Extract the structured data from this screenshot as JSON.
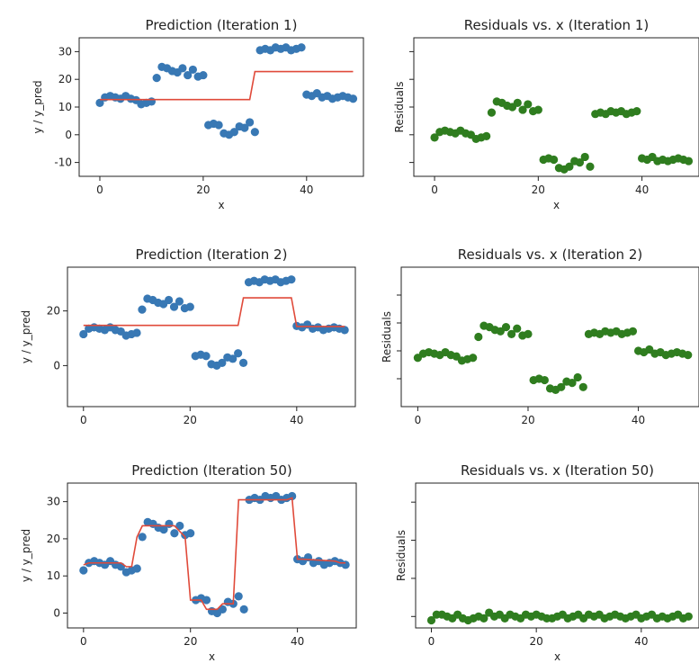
{
  "colors": {
    "points_pred": "#3878b4",
    "points_resid": "#2f7d1f",
    "line": "#e04a3a"
  },
  "chart_data": [
    {
      "type": "scatter",
      "title": "Prediction (Iteration 1)",
      "xlabel": "x",
      "ylabel": "y / y_pred",
      "xlim": [
        -4,
        51
      ],
      "ylim": [
        -15,
        35
      ],
      "xticks": [
        0,
        20,
        40
      ],
      "yticks": [
        -10,
        0,
        10,
        20,
        30
      ],
      "series": [
        {
          "kind": "points",
          "x": [
            0,
            1,
            2,
            3,
            4,
            5,
            6,
            7,
            8,
            9,
            10,
            11,
            12,
            13,
            14,
            15,
            16,
            17,
            18,
            19,
            20,
            21,
            22,
            23,
            24,
            25,
            26,
            27,
            28,
            29,
            30,
            31,
            32,
            33,
            34,
            35,
            36,
            37,
            38,
            39,
            40,
            41,
            42,
            43,
            44,
            45,
            46,
            47,
            48,
            49
          ],
          "y": [
            11.5,
            13.5,
            14,
            13.5,
            13,
            14,
            13,
            12.5,
            11,
            11.5,
            12,
            20.5,
            24.5,
            24,
            23,
            22.5,
            24,
            21.5,
            23.5,
            21,
            21.5,
            3.5,
            4,
            3.5,
            0.5,
            0,
            1,
            3,
            2.5,
            4.5,
            1,
            30.5,
            31,
            30.5,
            31.5,
            31,
            31.5,
            30.5,
            31,
            31.5,
            14.5,
            14,
            15,
            13.5,
            14,
            13,
            13.5,
            14,
            13.5,
            13
          ]
        },
        {
          "kind": "line",
          "x": [
            0,
            29,
            30,
            49
          ],
          "y": [
            12.7,
            12.7,
            22.8,
            22.8
          ]
        }
      ]
    },
    {
      "type": "scatter",
      "title": "Residuals vs. x (Iteration 1)",
      "xlabel": "x",
      "ylabel": "Residuals",
      "xlim": [
        -4,
        51
      ],
      "ylim": [
        -15,
        35
      ],
      "xticks": [
        0,
        20,
        40
      ],
      "yticks": [
        -10,
        0,
        10,
        20,
        30
      ],
      "series": [
        {
          "kind": "points",
          "x": [
            0,
            1,
            2,
            3,
            4,
            5,
            6,
            7,
            8,
            9,
            10,
            11,
            12,
            13,
            14,
            15,
            16,
            17,
            18,
            19,
            20,
            21,
            22,
            23,
            24,
            25,
            26,
            27,
            28,
            29,
            30,
            31,
            32,
            33,
            34,
            35,
            36,
            37,
            38,
            39,
            40,
            41,
            42,
            43,
            44,
            45,
            46,
            47,
            48,
            49
          ],
          "y": [
            -1,
            1,
            1.5,
            1,
            0.5,
            1.5,
            0.5,
            0,
            -1.5,
            -1,
            -0.5,
            8,
            12,
            11.5,
            10.5,
            10,
            11.5,
            9,
            11,
            8.5,
            9,
            -9,
            -8.5,
            -9,
            -12,
            -12.5,
            -11.5,
            -9.5,
            -10,
            -8,
            -11.5,
            7.5,
            8,
            7.5,
            8.5,
            8,
            8.5,
            7.5,
            8,
            8.5,
            -8.5,
            -9,
            -8,
            -9.5,
            -9,
            -9.5,
            -9,
            -8.5,
            -9,
            -9.5
          ]
        }
      ]
    },
    {
      "type": "scatter",
      "title": "Prediction (Iteration 2)",
      "xlabel": "",
      "ylabel": "y / y_pred",
      "xlim": [
        -3,
        51
      ],
      "ylim": [
        -15,
        36
      ],
      "xticks": [
        0,
        20,
        40
      ],
      "yticks": [
        0,
        20
      ],
      "series": [
        {
          "kind": "points",
          "x": [
            0,
            1,
            2,
            3,
            4,
            5,
            6,
            7,
            8,
            9,
            10,
            11,
            12,
            13,
            14,
            15,
            16,
            17,
            18,
            19,
            20,
            21,
            22,
            23,
            24,
            25,
            26,
            27,
            28,
            29,
            30,
            31,
            32,
            33,
            34,
            35,
            36,
            37,
            38,
            39,
            40,
            41,
            42,
            43,
            44,
            45,
            46,
            47,
            48,
            49
          ],
          "y": [
            11.5,
            13.5,
            14,
            13.5,
            13,
            14,
            13,
            12.5,
            11,
            11.5,
            12,
            20.5,
            24.5,
            24,
            23,
            22.5,
            24,
            21.5,
            23.5,
            21,
            21.5,
            3.5,
            4,
            3.5,
            0.5,
            0,
            1,
            3,
            2.5,
            4.5,
            1,
            30.5,
            31,
            30.5,
            31.5,
            31,
            31.5,
            30.5,
            31,
            31.5,
            14.5,
            14,
            15,
            13.5,
            14,
            13,
            13.5,
            14,
            13.5,
            13
          ]
        },
        {
          "kind": "line",
          "x": [
            0,
            29,
            30,
            39,
            40,
            49
          ],
          "y": [
            14.7,
            14.7,
            24.8,
            24.8,
            14.3,
            14.3
          ]
        }
      ]
    },
    {
      "type": "scatter",
      "title": "Residuals vs. x (Iteration 2)",
      "xlabel": "",
      "ylabel": "Residuals",
      "xlim": [
        -3,
        51
      ],
      "ylim": [
        -20,
        30
      ],
      "xticks": [
        0,
        20,
        40
      ],
      "yticks": [
        -10,
        0,
        10,
        20
      ],
      "series": [
        {
          "kind": "points",
          "x": [
            0,
            1,
            2,
            3,
            4,
            5,
            6,
            7,
            8,
            9,
            10,
            11,
            12,
            13,
            14,
            15,
            16,
            17,
            18,
            19,
            20,
            21,
            22,
            23,
            24,
            25,
            26,
            27,
            28,
            29,
            30,
            31,
            32,
            33,
            34,
            35,
            36,
            37,
            38,
            39,
            40,
            41,
            42,
            43,
            44,
            45,
            46,
            47,
            48,
            49
          ],
          "y": [
            -2.5,
            -1,
            -0.5,
            -1,
            -1.5,
            -0.5,
            -1.5,
            -2,
            -3.5,
            -3,
            -2.5,
            5,
            9,
            8.5,
            7.5,
            7,
            8.5,
            6,
            8,
            5.5,
            6,
            -10.5,
            -10,
            -10.5,
            -13.5,
            -14,
            -13,
            -11,
            -11.5,
            -9.5,
            -13,
            6,
            6.5,
            6,
            7,
            6.5,
            7,
            6,
            6.5,
            7,
            0,
            -0.5,
            0.5,
            -1,
            -0.5,
            -1.5,
            -1,
            -0.5,
            -1,
            -1.5
          ]
        }
      ]
    },
    {
      "type": "scatter",
      "title": "Prediction (Iteration 50)",
      "xlabel": "x",
      "ylabel": "y / y_pred",
      "xlim": [
        -3,
        51
      ],
      "ylim": [
        -4,
        35
      ],
      "xticks": [
        0,
        20,
        40
      ],
      "yticks": [
        0,
        10,
        20,
        30
      ],
      "series": [
        {
          "kind": "points",
          "x": [
            0,
            1,
            2,
            3,
            4,
            5,
            6,
            7,
            8,
            9,
            10,
            11,
            12,
            13,
            14,
            15,
            16,
            17,
            18,
            19,
            20,
            21,
            22,
            23,
            24,
            25,
            26,
            27,
            28,
            29,
            30,
            31,
            32,
            33,
            34,
            35,
            36,
            37,
            38,
            39,
            40,
            41,
            42,
            43,
            44,
            45,
            46,
            47,
            48,
            49
          ],
          "y": [
            11.5,
            13.5,
            14,
            13.5,
            13,
            14,
            13,
            12.5,
            11,
            11.5,
            12,
            20.5,
            24.5,
            24,
            23,
            22.5,
            24,
            21.5,
            23.5,
            21,
            21.5,
            3.5,
            4,
            3.5,
            0.5,
            0,
            1,
            3,
            2.5,
            4.5,
            1,
            30.5,
            31,
            30.5,
            31.5,
            31,
            31.5,
            30.5,
            31,
            31.5,
            14.5,
            14,
            15,
            13.5,
            14,
            13,
            13.5,
            14,
            13.5,
            13
          ]
        },
        {
          "kind": "line",
          "x": [
            0,
            1,
            7,
            8,
            9,
            10,
            11,
            17,
            18,
            19,
            20,
            21,
            22,
            23,
            24,
            25,
            26,
            27,
            28,
            29,
            30,
            31,
            38,
            39,
            40,
            41,
            47,
            48,
            49
          ],
          "y": [
            13,
            13.5,
            13.5,
            12.5,
            12.5,
            20.5,
            23.5,
            23.5,
            22,
            20.5,
            3.5,
            3.5,
            3.5,
            1,
            1,
            1,
            2.5,
            2.5,
            2.5,
            30.5,
            30.5,
            30.5,
            30.5,
            31,
            14.5,
            14.5,
            14,
            13.5,
            13.5
          ]
        }
      ]
    },
    {
      "type": "scatter",
      "title": "Residuals vs. x (Iteration 50)",
      "xlabel": "x",
      "ylabel": "Residuals",
      "xlim": [
        -3,
        51
      ],
      "ylim": [
        -3,
        35
      ],
      "xticks": [
        0,
        20,
        40
      ],
      "yticks": [
        0,
        10,
        20,
        30
      ],
      "series": [
        {
          "kind": "points",
          "x": [
            0,
            1,
            2,
            3,
            4,
            5,
            6,
            7,
            8,
            9,
            10,
            11,
            12,
            13,
            14,
            15,
            16,
            17,
            18,
            19,
            20,
            21,
            22,
            23,
            24,
            25,
            26,
            27,
            28,
            29,
            30,
            31,
            32,
            33,
            34,
            35,
            36,
            37,
            38,
            39,
            40,
            41,
            42,
            43,
            44,
            45,
            46,
            47,
            48,
            49
          ],
          "y": [
            -1,
            0.5,
            0.5,
            0,
            -0.5,
            0.5,
            -0.5,
            -1,
            -0.5,
            0,
            -0.5,
            1,
            0,
            0.5,
            -0.5,
            0.5,
            0,
            -0.5,
            0.5,
            0,
            0.5,
            0,
            -0.5,
            -0.5,
            0,
            0.5,
            -0.5,
            0,
            0.5,
            -0.5,
            0.5,
            0,
            0.5,
            -0.5,
            0,
            0.5,
            0,
            -0.5,
            0,
            0.5,
            -0.5,
            0,
            0.5,
            -0.5,
            0,
            -0.5,
            0,
            0.5,
            -0.5,
            0
          ]
        }
      ]
    }
  ]
}
